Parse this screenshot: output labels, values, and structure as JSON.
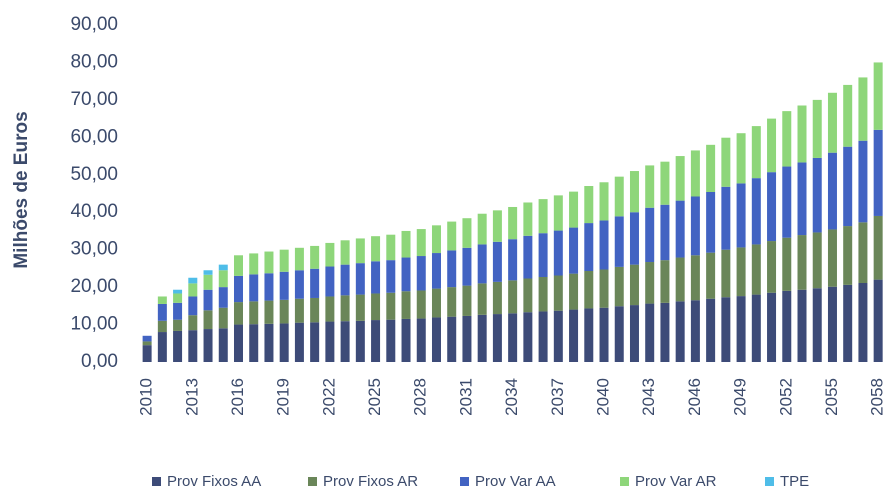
{
  "chart_data": {
    "type": "bar",
    "stacked": true,
    "ylabel": "Milhões de Euros",
    "categories": [
      "2010",
      null,
      null,
      "2013",
      null,
      null,
      "2016",
      null,
      null,
      "2019",
      null,
      null,
      "2022",
      null,
      null,
      "2025",
      null,
      null,
      "2028",
      null,
      null,
      "2031",
      null,
      null,
      "2034",
      null,
      null,
      "2037",
      null,
      null,
      "2040",
      null,
      null,
      "2043",
      null,
      null,
      "2046",
      null,
      null,
      "2049",
      null,
      null,
      "2052",
      null,
      null,
      "2055",
      null,
      null,
      "2058"
    ],
    "series": [
      {
        "name": "Prov Fixos AA",
        "color": "#3d4b78",
        "values": [
          4.5,
          8,
          8.3,
          8.5,
          8.8,
          9,
          10,
          10.1,
          10.2,
          10.3,
          10.5,
          10.6,
          10.8,
          10.9,
          11.0,
          11.2,
          11.3,
          11.5,
          11.6,
          11.9,
          12.1,
          12.3,
          12.6,
          12.8,
          13.0,
          13.3,
          13.5,
          13.7,
          14.0,
          14.3,
          14.5,
          14.9,
          15.2,
          15.6,
          15.8,
          16.2,
          16.5,
          16.9,
          17.3,
          17.6,
          18.0,
          18.5,
          19.0,
          19.3,
          19.7,
          20.1,
          20.6,
          21.1,
          22.0
        ]
      },
      {
        "name": "Prov Fixos AR",
        "color": "#6a8659",
        "values": [
          1.0,
          3,
          3,
          4,
          5,
          5.5,
          6,
          6.1,
          6.2,
          6.3,
          6.4,
          6.5,
          6.7,
          6.9,
          7.0,
          7.1,
          7.2,
          7.4,
          7.5,
          7.7,
          7.9,
          8.1,
          8.4,
          8.6,
          8.8,
          9.0,
          9.2,
          9.4,
          9.6,
          10.0,
          10.2,
          10.5,
          10.8,
          11.1,
          11.4,
          11.7,
          12.0,
          12.3,
          12.7,
          13.0,
          13.4,
          13.8,
          14.2,
          14.6,
          14.9,
          15.3,
          15.7,
          16.2,
          17.0
        ]
      },
      {
        "name": "Prov Var AA",
        "color": "#4263c2",
        "values": [
          1.5,
          4.5,
          4.5,
          5,
          5.5,
          5.5,
          7,
          7.2,
          7.3,
          7.5,
          7.6,
          7.8,
          8.0,
          8.2,
          8.4,
          8.6,
          8.7,
          9.0,
          9.2,
          9.5,
          9.8,
          10.1,
          10.4,
          10.7,
          11.0,
          11.4,
          11.7,
          12.0,
          12.3,
          12.8,
          13.1,
          13.5,
          14.0,
          14.5,
          14.8,
          15.2,
          15.7,
          16.2,
          16.8,
          17.1,
          17.7,
          18.4,
          19.0,
          19.4,
          19.9,
          20.5,
          21.2,
          21.8,
          23.0
        ]
      },
      {
        "name": "Prov Var AR",
        "color": "#8ed67a",
        "values": [
          0,
          2,
          2.5,
          3.5,
          4,
          4.5,
          5.5,
          5.6,
          5.8,
          5.9,
          6.0,
          6.1,
          6.3,
          6.5,
          6.6,
          6.7,
          6.8,
          7.1,
          7.2,
          7.4,
          7.7,
          7.9,
          8.2,
          8.4,
          8.6,
          8.9,
          9.1,
          9.4,
          9.6,
          9.9,
          10.2,
          10.6,
          11.0,
          11.3,
          11.5,
          11.9,
          12.3,
          12.6,
          13.1,
          13.4,
          13.9,
          14.3,
          14.8,
          15.2,
          15.5,
          16.0,
          16.5,
          16.9,
          18.0
        ]
      },
      {
        "name": "TPE",
        "color": "#4fbde8",
        "values": [
          0,
          0,
          1,
          1.5,
          1.2,
          1.5,
          0,
          0,
          0,
          0,
          0,
          0,
          0,
          0,
          0,
          0,
          0,
          0,
          0,
          0,
          0,
          0,
          0,
          0,
          0,
          0,
          0,
          0,
          0,
          0,
          0,
          0,
          0,
          0,
          0,
          0,
          0,
          0,
          0,
          0,
          0,
          0,
          0,
          0,
          0,
          0,
          0,
          0,
          0
        ]
      }
    ],
    "ylim": [
      0,
      90
    ],
    "yticks": [
      {
        "value": 0,
        "label": "0,00"
      },
      {
        "value": 10,
        "label": "10,00"
      },
      {
        "value": 20,
        "label": "20,00"
      },
      {
        "value": 30,
        "label": "30,00"
      },
      {
        "value": 40,
        "label": "40,00"
      },
      {
        "value": 50,
        "label": "50,00"
      },
      {
        "value": 60,
        "label": "60,00"
      },
      {
        "value": 70,
        "label": "70,00"
      },
      {
        "value": 80,
        "label": "80,00"
      },
      {
        "value": 90,
        "label": "90,00"
      }
    ],
    "grid": false,
    "legend": "bottom"
  }
}
